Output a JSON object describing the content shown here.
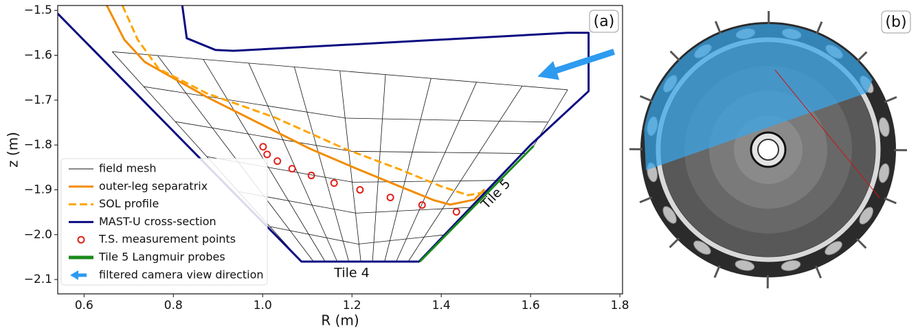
{
  "chart_data": {
    "type": "line",
    "xlabel": "R (m)",
    "ylabel": "z (m)",
    "xlim": [
      0.541,
      1.806
    ],
    "ylim": [
      -2.132,
      -1.489
    ],
    "xticks": [
      0.6,
      0.8,
      {
        "value": 1.0,
        "label": "1.0"
      },
      1.2,
      1.4,
      1.6,
      1.8
    ],
    "yticks": [
      {
        "value": -1.5,
        "label": "−1.5"
      },
      {
        "value": -1.6,
        "label": "−1.6"
      },
      {
        "value": -1.7,
        "label": "−1.7"
      },
      {
        "value": -1.8,
        "label": "−1.8"
      },
      {
        "value": -1.9,
        "label": "−1.9"
      },
      {
        "value": -2.0,
        "label": "−2.0"
      },
      {
        "value": -2.1,
        "label": "−2.1"
      }
    ],
    "grid": false,
    "legend": "lower left",
    "label": "(a)",
    "annotations": [
      "Tile 4",
      "Tile 5"
    ],
    "series": [
      {
        "name": "field mesh",
        "type": "mesh",
        "color": "#111111",
        "x": [
          0.663,
          1.683,
          null,
          0.734,
          1.186,
          1.638,
          null,
          0.804,
          1.198,
          1.591,
          null,
          0.875,
          1.203,
          1.531,
          null,
          0.946,
          1.209,
          1.472,
          null,
          1.016,
          1.214,
          1.411,
          null,
          1.087,
          1.352,
          null,
          0.663,
          1.087,
          null,
          0.765,
          1.114,
          null,
          0.867,
          1.14,
          null,
          0.969,
          1.167,
          null,
          1.071,
          1.193,
          null,
          1.173,
          1.22,
          null,
          1.275,
          1.246,
          null,
          1.377,
          1.273,
          null,
          1.479,
          1.299,
          null,
          1.581,
          1.326,
          null,
          1.683,
          1.607,
          1.352
        ],
        "y": [
          -1.592,
          -1.677,
          null,
          -1.67,
          -1.74,
          -1.749,
          null,
          -1.748,
          -1.814,
          -1.819,
          null,
          -1.826,
          -1.883,
          -1.879,
          null,
          -1.904,
          -1.952,
          -1.939,
          null,
          -1.982,
          -2.021,
          -2.0,
          null,
          -2.06,
          -2.06,
          null,
          -1.592,
          -2.06,
          null,
          -1.601,
          -2.06,
          null,
          -1.609,
          -2.06,
          null,
          -1.618,
          -2.06,
          null,
          -1.626,
          -2.06,
          null,
          -1.635,
          -2.06,
          null,
          -1.643,
          -2.06,
          null,
          -1.652,
          -2.06,
          null,
          -1.66,
          -2.06,
          null,
          -1.669,
          -2.06,
          null,
          -1.677,
          -1.802,
          -2.06
        ]
      },
      {
        "name": "outer-leg separatrix",
        "type": "line",
        "color": "#f28c00",
        "linestyle": "solid",
        "x": [
          0.651,
          0.69,
          0.736,
          0.875,
          0.997,
          1.105,
          1.213,
          1.306,
          1.383,
          1.42,
          1.474,
          1.497
        ],
        "y": [
          -1.489,
          -1.565,
          -1.615,
          -1.693,
          -1.754,
          -1.808,
          -1.854,
          -1.892,
          -1.923,
          -1.933,
          -1.922,
          -1.899
        ]
      },
      {
        "name": "SOL profile",
        "type": "line",
        "color": "#ffa500",
        "linestyle": "dashed",
        "x": [
          0.686,
          0.72,
          0.767,
          0.875,
          1.028,
          1.183,
          1.306,
          1.399,
          1.46,
          1.499
        ],
        "y": [
          -1.489,
          -1.565,
          -1.63,
          -1.685,
          -1.739,
          -1.808,
          -1.854,
          -1.892,
          -1.912,
          -1.905
        ]
      },
      {
        "name": "MAST-U cross-section",
        "type": "line",
        "color": "#0a0a80",
        "linestyle": "solid",
        "x": [
          0.82,
          0.83,
          0.894,
          0.935,
          1.683,
          1.73,
          1.73,
          1.6,
          1.35,
          1.087,
          0.541
        ],
        "y": [
          -1.489,
          -1.562,
          -1.588,
          -1.59,
          -1.55,
          -1.55,
          -1.68,
          -1.8,
          -2.06,
          -2.06,
          -1.507
        ]
      },
      {
        "name": "T.S. measurement points",
        "type": "scatter",
        "color": "#e0201b",
        "x": [
          1.001,
          1.01,
          1.033,
          1.066,
          1.109,
          1.16,
          1.218,
          1.286,
          1.357,
          1.434
        ],
        "y": [
          -1.804,
          -1.821,
          -1.836,
          -1.853,
          -1.868,
          -1.885,
          -1.9,
          -1.917,
          -1.934,
          -1.949
        ]
      },
      {
        "name": "Tile 5 Langmuir probes",
        "type": "line",
        "color": "#1a8a1a",
        "linestyle": "solid",
        "x": [
          1.352,
          1.607
        ],
        "y": [
          -2.06,
          -1.802
        ]
      },
      {
        "name": "filtered camera view direction",
        "type": "arrow",
        "color": "#2d9bf0",
        "x": [
          1.787,
          1.645
        ],
        "y": [
          -1.592,
          -1.638
        ]
      }
    ]
  },
  "image_panel": {
    "label": "(b)"
  }
}
